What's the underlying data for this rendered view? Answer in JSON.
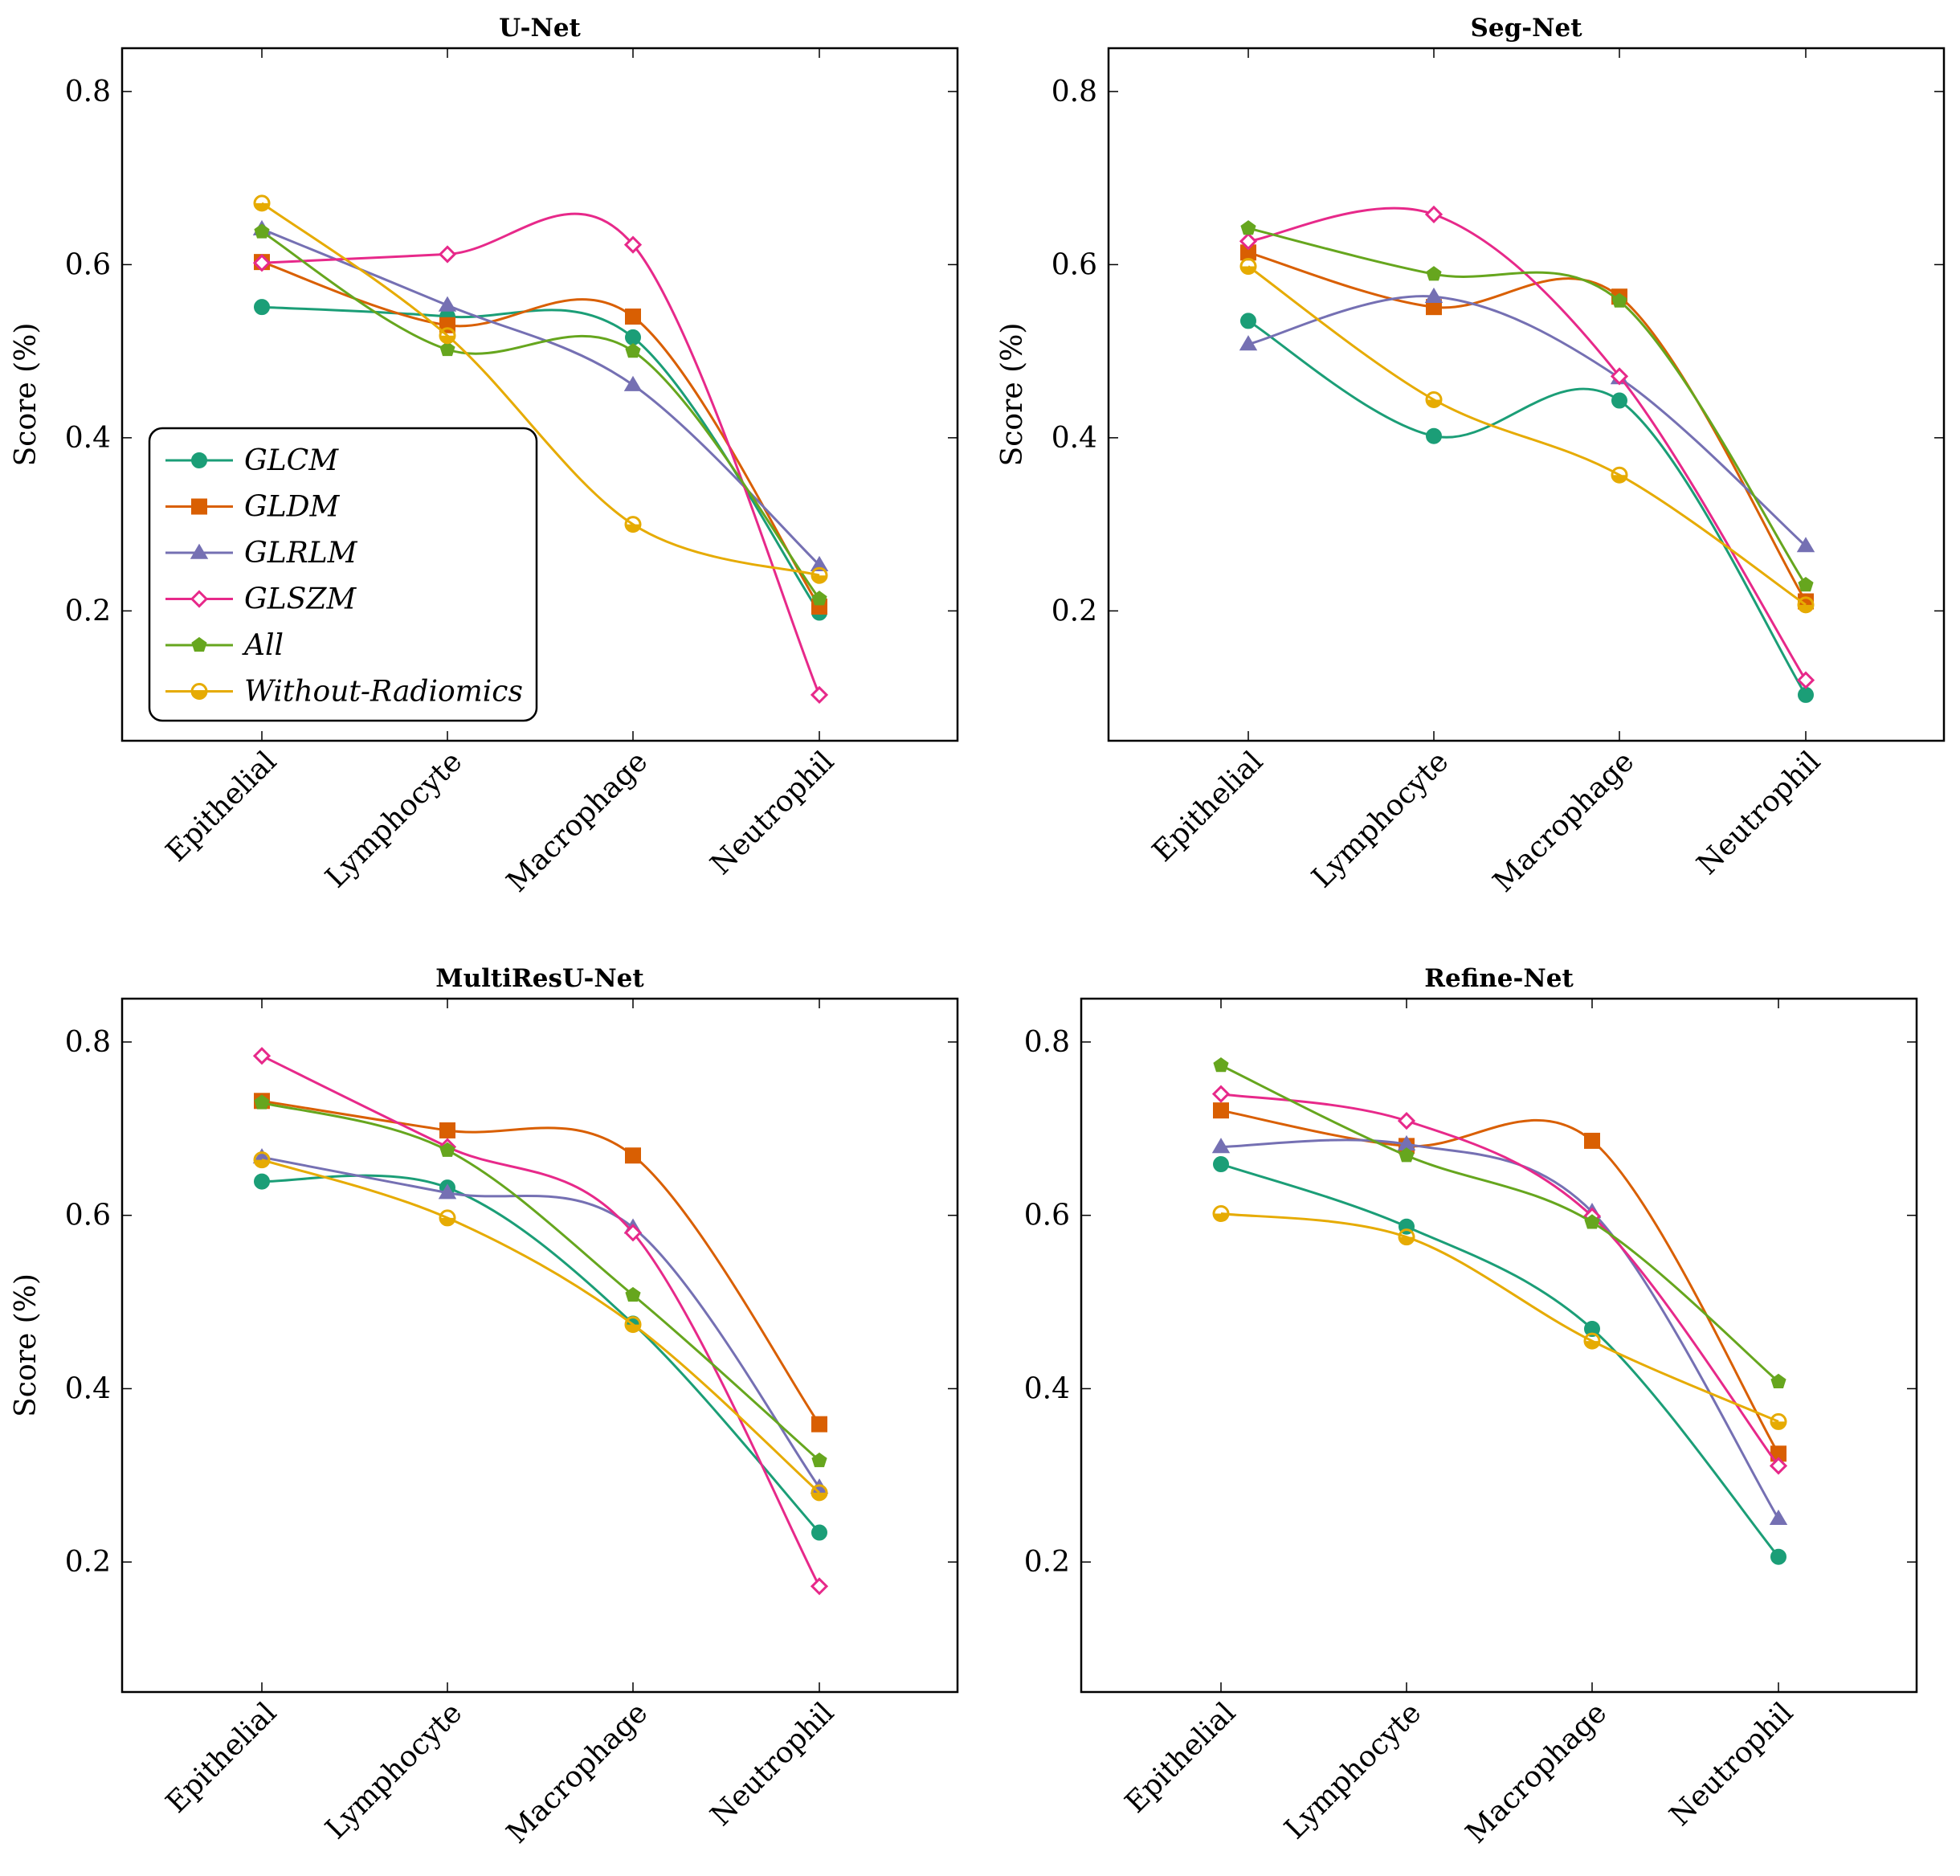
{
  "chart_data": [
    {
      "type": "line",
      "title": "U-Net",
      "ylabel": "Score (%)",
      "xlabel": "",
      "ylim": [
        0.05,
        0.85
      ],
      "yticks": [
        "0.2",
        "0.4",
        "0.6",
        "0.8"
      ],
      "categories": [
        "Epithelial",
        "Lymphocyte",
        "Macrophage",
        "Neutrophil"
      ],
      "series": [
        {
          "name": "GLCM",
          "values": [
            0.551,
            0.54,
            0.516,
            0.198
          ]
        },
        {
          "name": "GLDM",
          "values": [
            0.603,
            0.53,
            0.54,
            0.205
          ]
        },
        {
          "name": "GLRLM",
          "values": [
            0.641,
            0.553,
            0.461,
            0.253
          ]
        },
        {
          "name": "GLSZM",
          "values": [
            0.602,
            0.612,
            0.623,
            0.103
          ]
        },
        {
          "name": "All",
          "values": [
            0.638,
            0.502,
            0.5,
            0.214
          ]
        },
        {
          "name": "Without-Radiomics",
          "values": [
            0.671,
            0.518,
            0.3,
            0.241
          ]
        }
      ],
      "legend": {
        "position": "bottom-left"
      }
    },
    {
      "type": "line",
      "title": "Seg-Net",
      "ylabel": "Score (%)",
      "xlabel": "",
      "ylim": [
        0.05,
        0.85
      ],
      "yticks": [
        "0.2",
        "0.4",
        "0.6",
        "0.8"
      ],
      "categories": [
        "Epithelial",
        "Lymphocyte",
        "Macrophage",
        "Neutrophil"
      ],
      "series": [
        {
          "name": "GLCM",
          "values": [
            0.535,
            0.402,
            0.443,
            0.103
          ]
        },
        {
          "name": "GLDM",
          "values": [
            0.614,
            0.551,
            0.563,
            0.211
          ]
        },
        {
          "name": "GLRLM",
          "values": [
            0.508,
            0.563,
            0.469,
            0.275
          ]
        },
        {
          "name": "GLSZM",
          "values": [
            0.627,
            0.658,
            0.471,
            0.12
          ]
        },
        {
          "name": "All",
          "values": [
            0.642,
            0.589,
            0.558,
            0.23
          ]
        },
        {
          "name": "Without-Radiomics",
          "values": [
            0.598,
            0.444,
            0.357,
            0.207
          ]
        }
      ]
    },
    {
      "type": "line",
      "title": "MultiResU-Net",
      "ylabel": "Score (%)",
      "xlabel": "",
      "ylim": [
        0.05,
        0.85
      ],
      "yticks": [
        "0.2",
        "0.4",
        "0.6",
        "0.8"
      ],
      "categories": [
        "Epithelial",
        "Lymphocyte",
        "Macrophage",
        "Neutrophil"
      ],
      "series": [
        {
          "name": "GLCM",
          "values": [
            0.639,
            0.632,
            0.475,
            0.234
          ]
        },
        {
          "name": "GLDM",
          "values": [
            0.732,
            0.698,
            0.669,
            0.359
          ]
        },
        {
          "name": "GLRLM",
          "values": [
            0.667,
            0.626,
            0.586,
            0.286
          ]
        },
        {
          "name": "GLSZM",
          "values": [
            0.784,
            0.679,
            0.58,
            0.172
          ]
        },
        {
          "name": "All",
          "values": [
            0.73,
            0.675,
            0.508,
            0.317
          ]
        },
        {
          "name": "Without-Radiomics",
          "values": [
            0.664,
            0.597,
            0.474,
            0.28
          ]
        }
      ]
    },
    {
      "type": "line",
      "title": "Refine-Net",
      "ylabel": "",
      "xlabel": "",
      "ylim": [
        0.05,
        0.85
      ],
      "yticks": [
        "0.2",
        "0.4",
        "0.6",
        "0.8"
      ],
      "categories": [
        "Epithelial",
        "Lymphocyte",
        "Macrophage",
        "Neutrophil"
      ],
      "series": [
        {
          "name": "GLCM",
          "values": [
            0.659,
            0.587,
            0.469,
            0.206
          ]
        },
        {
          "name": "GLDM",
          "values": [
            0.721,
            0.68,
            0.686,
            0.325
          ]
        },
        {
          "name": "GLRLM",
          "values": [
            0.679,
            0.682,
            0.604,
            0.25
          ]
        },
        {
          "name": "GLSZM",
          "values": [
            0.74,
            0.709,
            0.599,
            0.311
          ]
        },
        {
          "name": "All",
          "values": [
            0.773,
            0.669,
            0.592,
            0.408
          ]
        },
        {
          "name": "Without-Radiomics",
          "values": [
            0.602,
            0.575,
            0.455,
            0.362
          ]
        }
      ]
    }
  ],
  "legend": [
    "GLCM",
    "GLDM",
    "GLRLM",
    "GLSZM",
    "All",
    "Without-Radiomics"
  ],
  "colors": {
    "GLCM": "#1b9e77",
    "GLDM": "#d95f02",
    "GLRLM": "#7570b3",
    "GLSZM": "#e7298a",
    "All": "#66a61e",
    "Without-Radiomics": "#e6ab02"
  },
  "markers": {
    "GLCM": "filled-circle",
    "GLDM": "filled-square",
    "GLRLM": "filled-triangle",
    "GLSZM": "open-diamond",
    "All": "filled-pentagon",
    "Without-Radiomics": "half-circle"
  }
}
